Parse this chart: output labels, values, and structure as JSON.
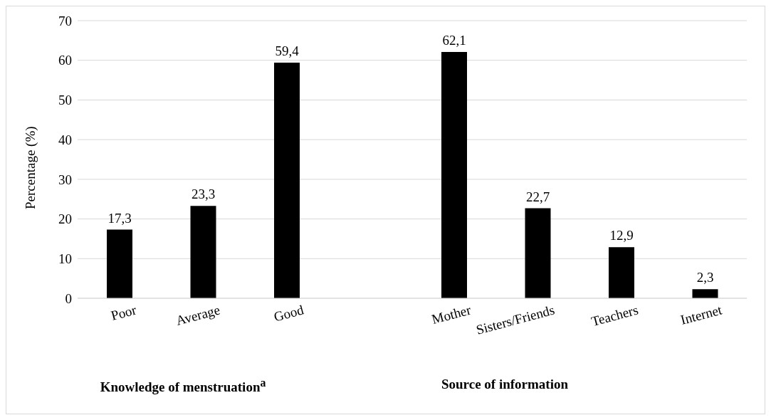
{
  "chart_data": {
    "type": "bar",
    "ylabel": "Percentage (%)",
    "categories": [
      "Poor",
      "Average",
      "Good",
      null,
      "Mother",
      "Sisters/Friends",
      "Teachers",
      "Internet"
    ],
    "values": [
      17.3,
      23.3,
      59.4,
      null,
      62.1,
      22.7,
      12.9,
      2.3
    ],
    "value_labels": [
      "17,3",
      "23,3",
      "59,4",
      null,
      "62,1",
      "22,7",
      "12,9",
      "2,3"
    ],
    "color": "#000000",
    "ylim": [
      0,
      70
    ],
    "yticks": [
      0,
      10,
      20,
      30,
      40,
      50,
      60,
      70
    ],
    "grid": "y",
    "annotations": [
      "Knowledge of menstruation$^{a}$",
      "Source of information"
    ]
  }
}
